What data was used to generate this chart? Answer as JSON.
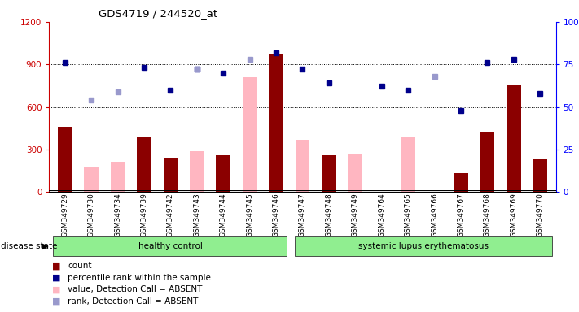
{
  "title": "GDS4719 / 244520_at",
  "samples": [
    "GSM349729",
    "GSM349730",
    "GSM349734",
    "GSM349739",
    "GSM349742",
    "GSM349743",
    "GSM349744",
    "GSM349745",
    "GSM349746",
    "GSM349747",
    "GSM349748",
    "GSM349749",
    "GSM349764",
    "GSM349765",
    "GSM349766",
    "GSM349767",
    "GSM349768",
    "GSM349769",
    "GSM349770"
  ],
  "count": [
    460,
    null,
    null,
    390,
    240,
    null,
    260,
    null,
    970,
    null,
    260,
    null,
    null,
    null,
    null,
    130,
    420,
    760,
    230
  ],
  "value_absent": [
    null,
    175,
    215,
    null,
    null,
    290,
    null,
    810,
    null,
    370,
    null,
    265,
    null,
    385,
    null,
    null,
    null,
    null,
    null
  ],
  "percentile_rank": [
    76,
    null,
    null,
    73,
    60,
    72,
    70,
    null,
    82,
    72,
    64,
    null,
    62,
    60,
    null,
    48,
    76,
    78,
    58
  ],
  "rank_absent": [
    null,
    54,
    59,
    null,
    null,
    72,
    null,
    78,
    null,
    null,
    null,
    null,
    null,
    null,
    68,
    null,
    null,
    null,
    null
  ],
  "healthy_control_count": 9,
  "left_ylim": [
    0,
    1200
  ],
  "right_ylim": [
    0,
    100
  ],
  "left_yticks": [
    0,
    300,
    600,
    900,
    1200
  ],
  "right_yticks": [
    0,
    25,
    50,
    75,
    100
  ],
  "bar_color_count": "#8B0000",
  "bar_color_absent": "#FFB6C1",
  "dot_color_percentile": "#00008B",
  "dot_color_rank_absent": "#9999CC",
  "group_label_healthy": "healthy control",
  "group_label_lupus": "systemic lupus erythematosus",
  "disease_state_label": "disease state",
  "legend_items": [
    {
      "label": "count",
      "color": "#8B0000"
    },
    {
      "label": "percentile rank within the sample",
      "color": "#00008B"
    },
    {
      "label": "value, Detection Call = ABSENT",
      "color": "#FFB6C1"
    },
    {
      "label": "rank, Detection Call = ABSENT",
      "color": "#9999CC"
    }
  ],
  "right_axis_color": "#0000FF",
  "left_axis_color": "#CC0000",
  "xticklabel_bg": "#DDDDDD"
}
